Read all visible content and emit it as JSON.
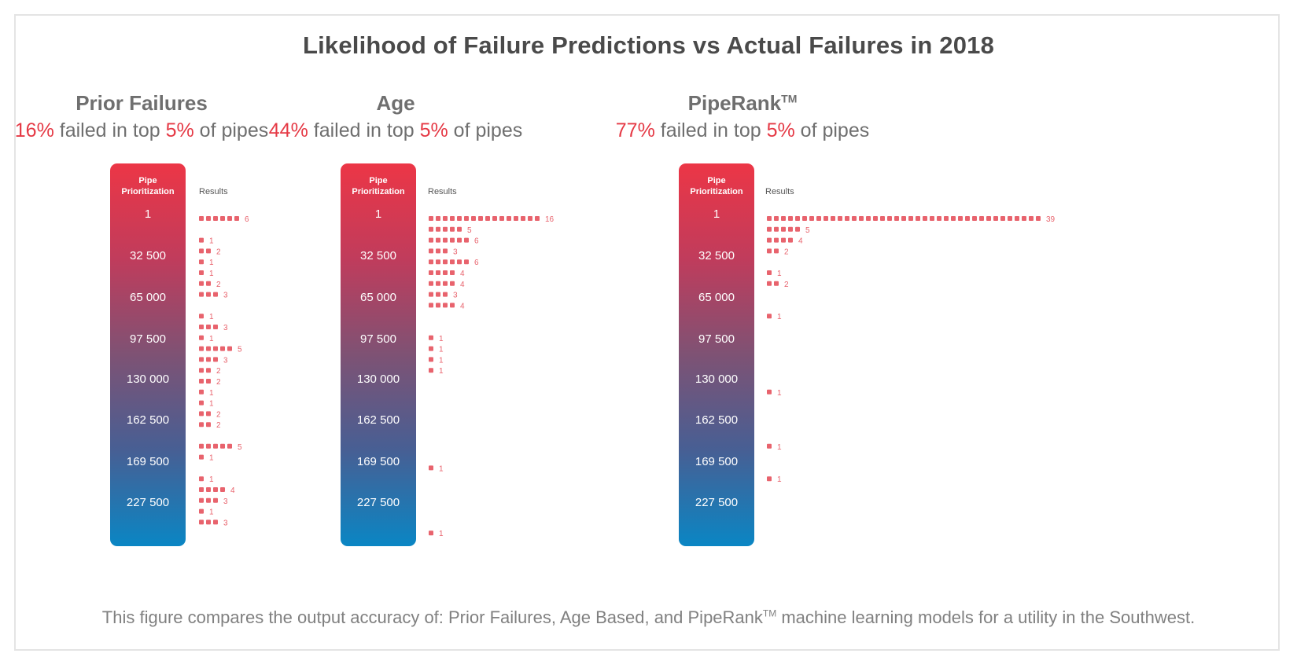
{
  "title": "Likelihood of Failure Predictions vs Actual Failures in 2018",
  "footnote_pre": "This figure compares the output accuracy of: Prior Failures, Age Based, and PipeRank",
  "footnote_tm": "TM",
  "footnote_post": " machine learning models for a utility in the Southwest.",
  "colors": {
    "accent_red": "#e53945",
    "mark_color": "#e8636d",
    "gradient_top": "#ec3646",
    "gradient_bottom": "#0a86c4"
  },
  "panels": [
    {
      "name": "Prior Failures",
      "tm": "",
      "pct": "16%",
      "sub_mid": " failed in top ",
      "top_pct": "5%",
      "sub_end": " of pipes",
      "bar_head": [
        "Pipe",
        "Prioritization"
      ],
      "results_label": "Results",
      "ticks": [
        "1",
        "32 500",
        "65 000",
        "97 500",
        "130 000",
        "162 500",
        "169 500",
        "227 500"
      ]
    },
    {
      "name": "Age",
      "tm": "",
      "pct": "44%",
      "sub_mid": " failed in top ",
      "top_pct": "5%",
      "sub_end": " of pipes",
      "bar_head": [
        "Pipe",
        "Prioritization"
      ],
      "results_label": "Results",
      "ticks": [
        "1",
        "32 500",
        "65 000",
        "97 500",
        "130 000",
        "162 500",
        "169 500",
        "227 500"
      ]
    },
    {
      "name": "PipeRank",
      "tm": "TM",
      "pct": "77%",
      "sub_mid": " failed in top ",
      "top_pct": "5%",
      "sub_end": " of pipes",
      "bar_head": [
        "Pipe",
        "Prioritization"
      ],
      "results_label": "Results",
      "ticks": [
        "1",
        "32 500",
        "65 000",
        "97 500",
        "130 000",
        "162 500",
        "169 500",
        "227 500"
      ]
    }
  ],
  "chart_data": [
    {
      "type": "bar",
      "title": "Prior Failures",
      "summary": "16% failed in top 5% of pipes",
      "xlabel": "Results",
      "ylabel": "Pipe Prioritization",
      "yticks": [
        "1",
        "32 500",
        "65 000",
        "97 500",
        "130 000",
        "162 500",
        "169 500",
        "227 500"
      ],
      "values": [
        6,
        null,
        1,
        2,
        1,
        1,
        2,
        3,
        null,
        1,
        3,
        1,
        5,
        3,
        2,
        2,
        1,
        1,
        2,
        2,
        null,
        5,
        1,
        null,
        1,
        4,
        3,
        1,
        3
      ]
    },
    {
      "type": "bar",
      "title": "Age",
      "summary": "44% failed in top 5% of pipes",
      "xlabel": "Results",
      "ylabel": "Pipe Prioritization",
      "yticks": [
        "1",
        "32 500",
        "65 000",
        "97 500",
        "130 000",
        "162 500",
        "169 500",
        "227 500"
      ],
      "values": [
        16,
        5,
        6,
        3,
        6,
        4,
        4,
        3,
        4,
        null,
        null,
        1,
        1,
        1,
        1,
        null,
        null,
        null,
        null,
        null,
        null,
        null,
        null,
        1,
        null,
        null,
        null,
        null,
        null,
        1
      ]
    },
    {
      "type": "bar",
      "title": "PipeRank™",
      "summary": "77% failed in top 5% of pipes",
      "xlabel": "Results",
      "ylabel": "Pipe Prioritization",
      "yticks": [
        "1",
        "32 500",
        "65 000",
        "97 500",
        "130 000",
        "162 500",
        "169 500",
        "227 500"
      ],
      "values": [
        39,
        5,
        4,
        2,
        null,
        1,
        2,
        null,
        null,
        1,
        null,
        null,
        null,
        null,
        null,
        null,
        1,
        null,
        null,
        null,
        null,
        1,
        null,
        null,
        1
      ]
    }
  ]
}
